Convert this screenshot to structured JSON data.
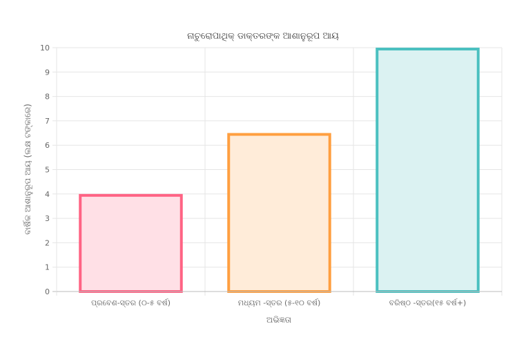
{
  "chart_data": {
    "type": "bar",
    "title": "ନାଚୁରୋପାଥିକ୍ ଡାକ୍ତରଙ୍କ ଆଶାନୁରୂପ ଆୟ",
    "xlabel": "ଅଭିଜ୍ଞତା",
    "ylabel": "ବାର୍ଷିକ ଆଶାନୁରୂପ ଆୟ (ଲକ୍ଷ ଟଙ୍କାରେ)",
    "categories": [
      "ପ୍ରବେଶ-ସ୍ତର (୦-୫ ବର୍ଷ)",
      "ମଧ୍ୟମ -ସ୍ତର (୫-୧୦ ବର୍ଷ)",
      "ବରିଷ୍ଠ -ସ୍ତର(୧୫ ବର୍ଷ+)"
    ],
    "values": [
      4,
      6.5,
      10
    ],
    "ylim": [
      0,
      10
    ],
    "yticks": [
      "0",
      "1",
      "2",
      "3",
      "4",
      "5",
      "6",
      "7",
      "8",
      "9",
      "10"
    ],
    "grid": true,
    "legend": "none",
    "colors": {
      "border": [
        "#ff6384",
        "#ff9f40",
        "#4bc0c0"
      ],
      "fill": [
        "#ffe0e6",
        "#ffecd9",
        "#dbf2f2"
      ]
    }
  }
}
